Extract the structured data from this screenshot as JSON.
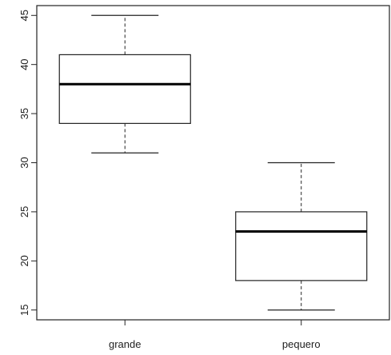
{
  "chart_data": {
    "type": "box",
    "title": "",
    "xlabel": "",
    "ylabel": "",
    "ylim": [
      14,
      46
    ],
    "y_ticks": [
      15,
      20,
      25,
      30,
      35,
      40,
      45
    ],
    "y_tick_labels": [
      "15",
      "20",
      "25",
      "30",
      "35",
      "40",
      "45"
    ],
    "grid": false,
    "legend": "none",
    "categories": [
      "grande",
      "pequero"
    ],
    "boxes": [
      {
        "category": "grande",
        "min": 31,
        "q1": 34,
        "median": 38,
        "q3": 41,
        "max": 45
      },
      {
        "category": "pequero",
        "min": 15,
        "q1": 18,
        "median": 23,
        "q3": 25,
        "max": 30
      }
    ]
  }
}
